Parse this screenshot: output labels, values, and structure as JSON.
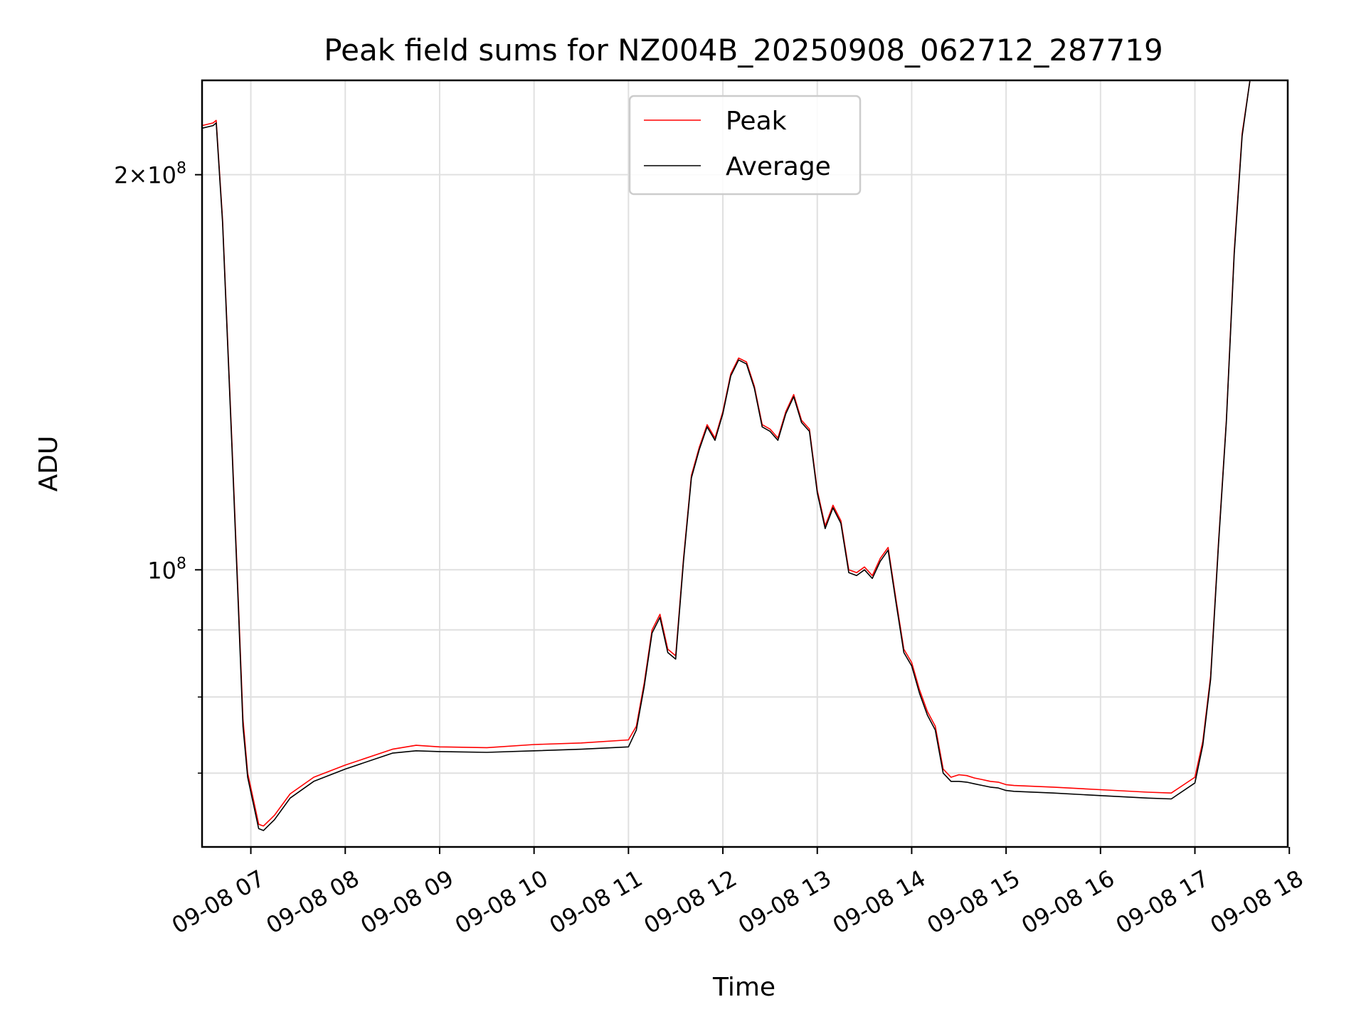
{
  "chart_data": {
    "type": "line",
    "title": "Peak field sums for NZ004B_20250908_062712_287719",
    "xlabel": "Time",
    "ylabel": "ADU",
    "yscale": "log",
    "ylim": [
      61500000,
      236000000
    ],
    "xlim": [
      "09-08 06:29",
      "09-08 17:59"
    ],
    "grid": true,
    "legend_position": "top-center",
    "x_ticks": [
      "09-08 07",
      "09-08 08",
      "09-08 09",
      "09-08 10",
      "09-08 11",
      "09-08 12",
      "09-08 13",
      "09-08 14",
      "09-08 15",
      "09-08 16",
      "09-08 17",
      "09-08 18"
    ],
    "x_tick_times": [
      "07:00",
      "08:00",
      "09:00",
      "10:00",
      "11:00",
      "12:00",
      "13:00",
      "14:00",
      "15:00",
      "16:00",
      "17:00",
      "18:00"
    ],
    "y_ticks": [
      {
        "label_base": "2×10",
        "label_exp": "8",
        "value": 200000000
      },
      {
        "label_base": "10",
        "label_exp": "8",
        "value": 100000000
      }
    ],
    "y_minor_ticks": [
      90000000,
      80000000,
      70000000,
      60000000
    ],
    "series": [
      {
        "name": "Peak",
        "color": "#ff0000",
        "x": [
          "06:29",
          "06:36",
          "06:38",
          "06:42",
          "06:48",
          "06:52",
          "06:55",
          "06:58",
          "07:02",
          "07:05",
          "07:08",
          "07:15",
          "07:25",
          "07:40",
          "08:00",
          "08:30",
          "08:45",
          "09:00",
          "09:30",
          "10:00",
          "10:30",
          "11:00",
          "11:05",
          "11:10",
          "11:15",
          "11:20",
          "11:25",
          "11:30",
          "11:35",
          "11:40",
          "11:45",
          "11:50",
          "11:55",
          "12:00",
          "12:05",
          "12:10",
          "12:15",
          "12:20",
          "12:25",
          "12:30",
          "12:35",
          "12:40",
          "12:45",
          "12:50",
          "12:55",
          "13:00",
          "13:05",
          "13:10",
          "13:15",
          "13:20",
          "13:25",
          "13:30",
          "13:35",
          "13:40",
          "13:45",
          "13:50",
          "13:55",
          "14:00",
          "14:05",
          "14:10",
          "14:15",
          "14:20",
          "14:25",
          "14:30",
          "14:35",
          "14:40",
          "14:45",
          "14:50",
          "14:55",
          "15:00",
          "15:05",
          "15:30",
          "16:00",
          "16:30",
          "16:45",
          "17:00",
          "17:05",
          "17:10",
          "17:15",
          "17:20",
          "17:25",
          "17:30",
          "17:35",
          "17:40",
          "17:45",
          "17:50",
          "17:55",
          "17:59"
        ],
        "y": [
          218000000,
          219000000,
          220000000,
          185000000,
          125000000,
          95000000,
          77000000,
          70000000,
          66500000,
          64000000,
          63800000,
          65000000,
          67500000,
          69500000,
          71000000,
          73000000,
          73500000,
          73300000,
          73200000,
          73600000,
          73800000,
          74200000,
          76000000,
          82000000,
          90000000,
          92500000,
          87000000,
          86000000,
          102000000,
          118000000,
          124000000,
          129000000,
          126000000,
          132000000,
          141000000,
          145000000,
          144000000,
          138000000,
          129000000,
          128000000,
          126000000,
          132000000,
          136000000,
          130000000,
          128000000,
          115000000,
          108000000,
          112000000,
          109000000,
          100000000,
          99500000,
          100500000,
          99000000,
          102000000,
          104000000,
          95000000,
          87000000,
          85000000,
          81000000,
          78000000,
          76000000,
          70500000,
          69500000,
          69800000,
          69700000,
          69400000,
          69200000,
          69000000,
          68900000,
          68600000,
          68500000,
          68300000,
          68000000,
          67700000,
          67600000,
          69500000,
          74000000,
          83000000,
          105000000,
          130000000,
          175000000,
          215000000,
          236000000,
          236000000,
          236000000,
          236000000,
          236000000,
          236000000
        ]
      },
      {
        "name": "Average",
        "color": "#000000",
        "x": [
          "06:29",
          "06:36",
          "06:38",
          "06:42",
          "06:48",
          "06:52",
          "06:55",
          "06:58",
          "07:02",
          "07:05",
          "07:08",
          "07:15",
          "07:25",
          "07:40",
          "08:00",
          "08:30",
          "08:45",
          "09:00",
          "09:30",
          "10:00",
          "10:30",
          "11:00",
          "11:05",
          "11:10",
          "11:15",
          "11:20",
          "11:25",
          "11:30",
          "11:35",
          "11:40",
          "11:45",
          "11:50",
          "11:55",
          "12:00",
          "12:05",
          "12:10",
          "12:15",
          "12:20",
          "12:25",
          "12:30",
          "12:35",
          "12:40",
          "12:45",
          "12:50",
          "12:55",
          "13:00",
          "13:05",
          "13:10",
          "13:15",
          "13:20",
          "13:25",
          "13:30",
          "13:35",
          "13:40",
          "13:45",
          "13:50",
          "13:55",
          "14:00",
          "14:05",
          "14:10",
          "14:15",
          "14:20",
          "14:25",
          "14:30",
          "14:35",
          "14:40",
          "14:45",
          "14:50",
          "14:55",
          "15:00",
          "15:05",
          "15:30",
          "16:00",
          "16:30",
          "16:45",
          "17:00",
          "17:05",
          "17:10",
          "17:15",
          "17:20",
          "17:25",
          "17:30",
          "17:35",
          "17:40",
          "17:45",
          "17:50",
          "17:55",
          "17:59"
        ],
        "y": [
          217000000,
          218000000,
          219000000,
          184000000,
          124000000,
          94000000,
          76000000,
          69500000,
          66000000,
          63500000,
          63300000,
          64500000,
          67000000,
          69000000,
          70500000,
          72500000,
          72800000,
          72700000,
          72600000,
          72800000,
          73000000,
          73300000,
          75500000,
          81500000,
          89500000,
          92000000,
          86500000,
          85500000,
          101500000,
          117500000,
          123500000,
          128500000,
          125500000,
          131500000,
          140500000,
          144500000,
          143500000,
          137500000,
          128500000,
          127500000,
          125500000,
          131500000,
          135500000,
          129500000,
          127500000,
          114500000,
          107500000,
          111500000,
          108500000,
          99500000,
          99000000,
          100000000,
          98500000,
          101500000,
          103500000,
          94500000,
          86500000,
          84500000,
          80500000,
          77500000,
          75500000,
          70000000,
          69000000,
          69000000,
          68900000,
          68700000,
          68500000,
          68300000,
          68200000,
          67900000,
          67800000,
          67600000,
          67300000,
          67000000,
          66900000,
          68800000,
          73500000,
          82500000,
          104500000,
          129500000,
          174000000,
          214000000,
          236000000,
          236000000,
          236000000,
          236000000,
          236000000,
          236000000
        ]
      }
    ]
  }
}
